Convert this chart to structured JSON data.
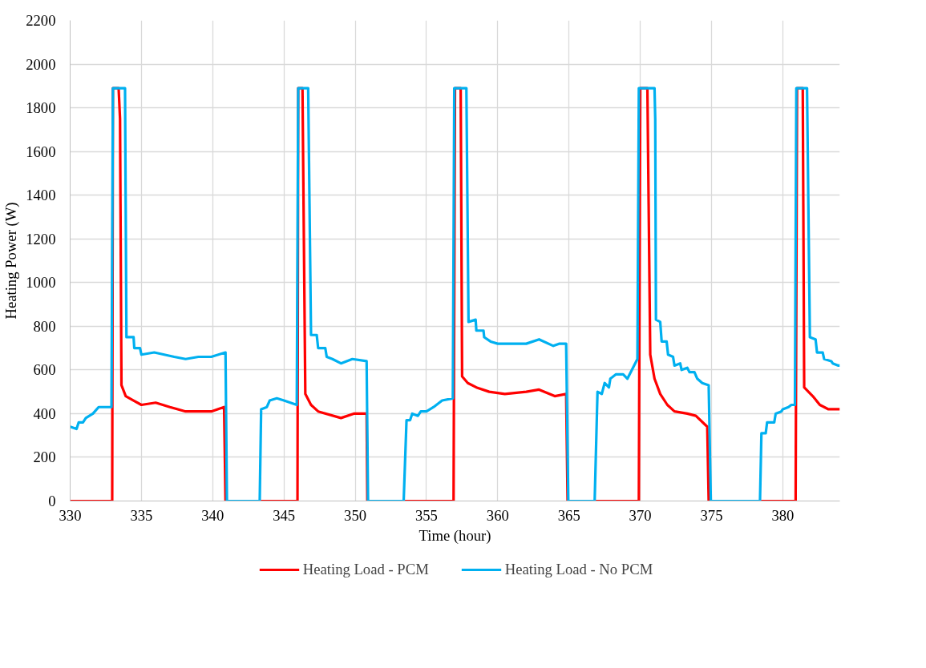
{
  "chart_data": {
    "type": "line",
    "xlabel": "Time (hour)",
    "ylabel": "Heating Power (W)",
    "xlim": [
      330,
      384
    ],
    "xticks": [
      330,
      335,
      340,
      345,
      350,
      355,
      360,
      365,
      370,
      375,
      380
    ],
    "ylim": [
      0,
      2200
    ],
    "yticks": [
      0,
      200,
      400,
      600,
      800,
      1000,
      1200,
      1400,
      1600,
      1800,
      2000,
      2200
    ],
    "grid": true,
    "legend": "bottom",
    "marker": "none",
    "line_style": "solid",
    "series": [
      {
        "name": "Heating Load - PCM",
        "color": "#ff0000",
        "x": [
          330,
          332.95,
          333.0,
          333.4,
          333.5,
          333.6,
          333.9,
          334.45,
          335,
          336,
          337,
          338.1,
          339.9,
          340.8,
          340.9,
          345.95,
          346.0,
          346.3,
          346.5,
          346.9,
          347.4,
          349,
          349.9,
          350.8,
          350.85,
          356.9,
          357.0,
          357.4,
          357.5,
          357.9,
          358.5,
          359.4,
          360.5,
          362,
          362.9,
          364,
          364.8,
          364.9,
          369.9,
          370.0,
          370.5,
          370.7,
          371,
          371.4,
          371.9,
          372.4,
          373.3,
          373.9,
          374.7,
          374.8,
          380.9,
          381.0,
          381.4,
          381.5,
          382.1,
          382.6,
          383.2,
          383.9,
          384
        ],
        "values": [
          0,
          0,
          1890,
          1890,
          1750,
          530,
          480,
          460,
          440,
          450,
          430,
          410,
          410,
          430,
          0,
          0,
          1890,
          1890,
          490,
          440,
          410,
          380,
          400,
          400,
          0,
          0,
          1890,
          1890,
          570,
          540,
          520,
          500,
          490,
          500,
          510,
          480,
          490,
          0,
          0,
          1890,
          1890,
          670,
          560,
          490,
          440,
          410,
          400,
          390,
          340,
          0,
          0,
          1890,
          1890,
          520,
          480,
          440,
          420,
          420,
          420
        ]
      },
      {
        "name": "Heating Load - No PCM",
        "color": "#00b0f0",
        "x": [
          330,
          330.45,
          330.6,
          330.9,
          331.1,
          331.6,
          332,
          332.6,
          332.9,
          333.0,
          333.85,
          333.95,
          334.45,
          334.5,
          334.9,
          335,
          335.9,
          337.3,
          338.1,
          339,
          339.9,
          340.9,
          341.0,
          343.3,
          343.4,
          343.8,
          344,
          344.5,
          345,
          345.9,
          346.0,
          346.7,
          346.9,
          347.3,
          347.4,
          347.9,
          348,
          348.4,
          349,
          349.8,
          350.8,
          350.9,
          353.4,
          353.6,
          353.85,
          354,
          354.4,
          354.6,
          355,
          355.5,
          356.1,
          356.85,
          356.95,
          357.8,
          357.95,
          358.45,
          358.5,
          359,
          359.05,
          359.5,
          360,
          361.1,
          362,
          362.9,
          363.9,
          364.3,
          364.8,
          364.95,
          366.8,
          367,
          367.3,
          367.5,
          367.8,
          367.9,
          368.3,
          368.8,
          369.1,
          369.8,
          369.9,
          371.0,
          371.05,
          371.1,
          371.4,
          371.5,
          371.85,
          371.95,
          372.3,
          372.4,
          372.8,
          372.9,
          373.3,
          373.45,
          373.8,
          374,
          374.35,
          374.8,
          374.95,
          378.4,
          378.5,
          378.8,
          378.9,
          379.4,
          379.5,
          379.9,
          380,
          380.4,
          380.6,
          380.85,
          380.95,
          381.7,
          381.9,
          382.3,
          382.4,
          382.8,
          382.9,
          383.4,
          383.5,
          383.9,
          384
        ],
        "values": [
          340,
          330,
          360,
          360,
          380,
          400,
          430,
          430,
          430,
          1890,
          1890,
          750,
          750,
          700,
          700,
          670,
          680,
          660,
          650,
          660,
          660,
          680,
          0,
          0,
          420,
          430,
          460,
          470,
          460,
          440,
          1890,
          1890,
          760,
          760,
          700,
          700,
          660,
          650,
          630,
          650,
          640,
          0,
          0,
          370,
          370,
          400,
          390,
          410,
          410,
          430,
          460,
          470,
          1890,
          1890,
          820,
          830,
          780,
          780,
          750,
          730,
          720,
          720,
          720,
          740,
          710,
          720,
          720,
          0,
          0,
          500,
          490,
          540,
          520,
          560,
          580,
          580,
          560,
          650,
          1890,
          1890,
          1750,
          830,
          820,
          730,
          730,
          670,
          660,
          620,
          630,
          600,
          610,
          590,
          590,
          560,
          540,
          530,
          0,
          0,
          310,
          310,
          360,
          360,
          400,
          410,
          420,
          430,
          440,
          440,
          1890,
          1890,
          750,
          740,
          680,
          680,
          650,
          640,
          630,
          620,
          620
        ]
      }
    ]
  }
}
